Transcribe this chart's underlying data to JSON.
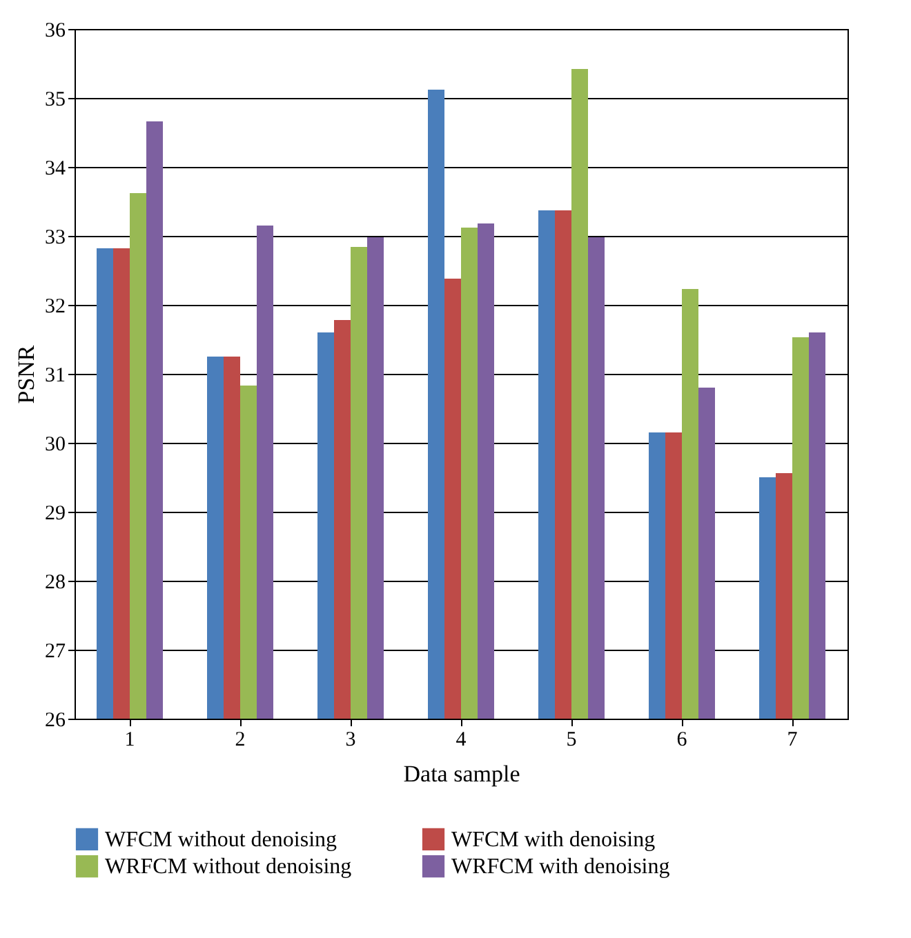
{
  "chart_data": {
    "type": "bar",
    "xlabel": "Data sample",
    "ylabel": "PSNR",
    "categories": [
      "1",
      "2",
      "3",
      "4",
      "5",
      "6",
      "7"
    ],
    "series": [
      {
        "name": "WFCM without denoising",
        "color": "#4a7ebb",
        "values": [
          32.82,
          31.25,
          31.6,
          35.12,
          33.37,
          30.15,
          29.5
        ]
      },
      {
        "name": "WFCM with denoising",
        "color": "#be4b48",
        "values": [
          32.82,
          31.25,
          31.78,
          32.38,
          33.37,
          30.15,
          29.56
        ]
      },
      {
        "name": "WRFCM without denoising",
        "color": "#98b954",
        "values": [
          33.62,
          30.83,
          32.84,
          33.12,
          35.42,
          32.23,
          31.53
        ]
      },
      {
        "name": "WRFCM with denoising",
        "color": "#7d60a0",
        "values": [
          34.66,
          33.15,
          32.98,
          33.18,
          32.98,
          30.8,
          31.6
        ]
      }
    ],
    "ylim": [
      26,
      36
    ],
    "yticks": [
      26,
      27,
      28,
      29,
      30,
      31,
      32,
      33,
      34,
      35,
      36
    ],
    "grid": "y",
    "legend": "bottom"
  }
}
